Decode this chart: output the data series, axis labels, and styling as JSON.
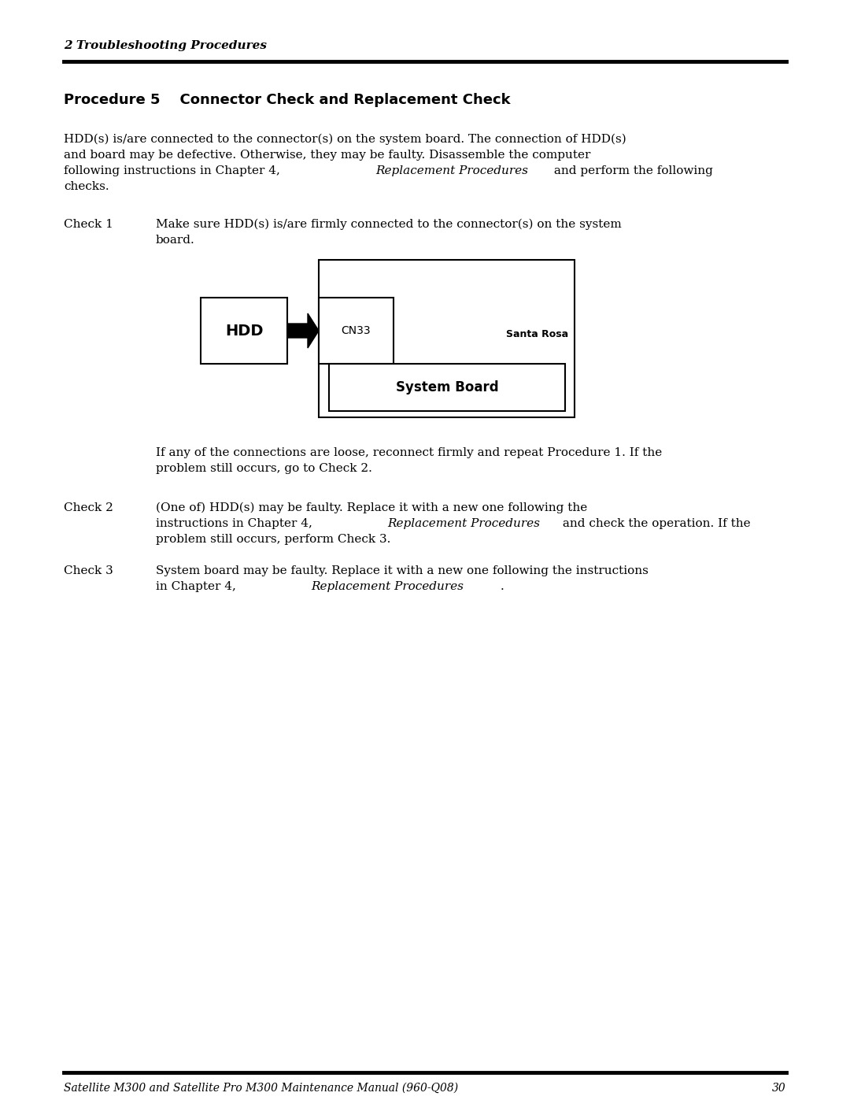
{
  "page_bg": "#ffffff",
  "header_text": "2 Troubleshooting Procedures",
  "header_fontsize": 11,
  "footer_text": "Satellite M300 and Satellite Pro M300 Maintenance Manual (960-Q08)",
  "footer_page": "30",
  "footer_fontsize": 10,
  "section_title": "Procedure 5    Connector Check and Replacement Check",
  "section_title_fontsize": 13,
  "body_fontsize": 11,
  "text_color": "#000000"
}
